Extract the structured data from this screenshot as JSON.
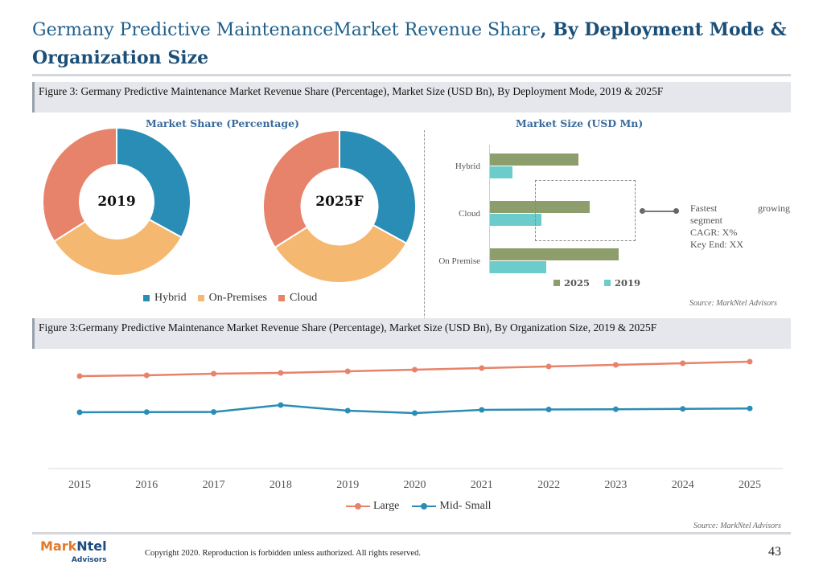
{
  "header": {
    "title_regular": "Germany Predictive MaintenanceMarket Revenue Share",
    "title_bold": ", By Deployment Mode & Organization Size"
  },
  "figure1": {
    "caption": "Figure 3: Germany Predictive Maintenance Market Revenue Share (Percentage), Market Size (USD Bn), By Deployment Mode, 2019 & 2025F",
    "share_heading": "Market Share (Percentage)",
    "size_heading": "Market Size (USD Mn)",
    "callout": {
      "word1": "Fastest",
      "word2": "growing",
      "line2": "segment",
      "line3": "CAGR: X%",
      "line4": "Key End: XX"
    },
    "source": "Source: MarkNtel Advisors"
  },
  "figure2": {
    "caption": "Figure 3:Germany Predictive Maintenance Market Revenue Share (Percentage), Market Size (USD Bn), By Organization Size, 2019 & 2025F",
    "source": "Source: MarkNtel Advisors"
  },
  "colors": {
    "hybrid": "#2a8db5",
    "on_premises": "#f5b870",
    "cloud": "#e8836b",
    "bar_2025": "#8e9d6c",
    "bar_2019": "#6ccccb",
    "large": "#e8836b",
    "mid_small": "#2a8db5"
  },
  "chart_data": [
    {
      "type": "pie",
      "donut": true,
      "title": "2019",
      "categories": [
        "Hybrid",
        "On-Premises",
        "Cloud"
      ],
      "values": [
        33,
        33,
        34
      ],
      "legend": [
        "Hybrid",
        "On-Premises",
        "Cloud"
      ]
    },
    {
      "type": "pie",
      "donut": true,
      "title": "2025F",
      "categories": [
        "Hybrid",
        "On-Premises",
        "Cloud"
      ],
      "values": [
        33,
        33,
        34
      ],
      "legend": [
        "Hybrid",
        "On-Premises",
        "Cloud"
      ]
    },
    {
      "type": "bar",
      "orientation": "horizontal",
      "categories": [
        "Hybrid",
        "Cloud",
        "On Premise"
      ],
      "series": [
        {
          "name": "2025",
          "values": [
            5.5,
            6.2,
            8.0
          ]
        },
        {
          "name": "2019",
          "values": [
            1.4,
            3.2,
            3.5
          ]
        }
      ],
      "legend": [
        "2025",
        "2019"
      ],
      "xlim": [
        0,
        10
      ]
    },
    {
      "type": "line",
      "x": [
        "2015",
        "2016",
        "2017",
        "2018",
        "2019",
        "2020",
        "2021",
        "2022",
        "2023",
        "2024",
        "2025"
      ],
      "series": [
        {
          "name": "Large",
          "values": [
            52,
            53,
            55,
            56,
            58,
            60,
            62,
            64,
            66,
            68,
            70
          ]
        },
        {
          "name": "Mid- Small",
          "values": [
            7,
            7.3,
            7.4,
            16,
            9,
            6,
            10,
            10.5,
            10.8,
            11.2,
            11.8
          ]
        }
      ],
      "ylim": [
        -60,
        80
      ],
      "grid": false,
      "legend_position": "bottom"
    }
  ]
}
